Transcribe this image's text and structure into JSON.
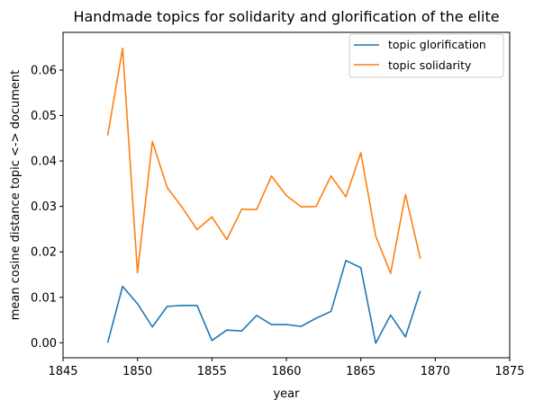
{
  "chart_data": {
    "type": "line",
    "title": "Handmade topics for solidarity and glorification of the elite",
    "xlabel": "year",
    "ylabel": "mean cosine distance topic <-> document",
    "xlim": [
      1845,
      1875
    ],
    "ylim": [
      -0.0033,
      0.0683
    ],
    "xticks": [
      1845,
      1850,
      1855,
      1860,
      1865,
      1870,
      1875
    ],
    "xtick_labels": [
      "1845",
      "1850",
      "1855",
      "1860",
      "1865",
      "1870",
      "1875"
    ],
    "yticks": [
      0.0,
      0.01,
      0.02,
      0.03,
      0.04,
      0.05,
      0.06
    ],
    "ytick_labels": [
      "0.00",
      "0.01",
      "0.02",
      "0.03",
      "0.04",
      "0.05",
      "0.06"
    ],
    "grid": false,
    "legend_position": "top-right",
    "x": [
      1848,
      1849,
      1850,
      1851,
      1852,
      1853,
      1854,
      1855,
      1856,
      1857,
      1858,
      1859,
      1860,
      1861,
      1862,
      1863,
      1864,
      1865,
      1866,
      1867,
      1868,
      1869
    ],
    "series": [
      {
        "name": "topic glorification",
        "color": "#1f77b4",
        "values": [
          0.0,
          0.0124,
          0.0086,
          0.0035,
          0.008,
          0.0082,
          0.0082,
          0.0005,
          0.0028,
          0.0026,
          0.006,
          0.004,
          0.004,
          0.0036,
          0.0054,
          0.0069,
          0.0181,
          0.0165,
          -0.0001,
          0.0061,
          0.0013,
          0.0114
        ]
      },
      {
        "name": "topic solidarity",
        "color": "#ff7f0e",
        "values": [
          0.0456,
          0.0648,
          0.0154,
          0.0443,
          0.0341,
          0.0298,
          0.0249,
          0.0277,
          0.0227,
          0.0294,
          0.0293,
          0.0367,
          0.0324,
          0.0299,
          0.03,
          0.0367,
          0.0321,
          0.0418,
          0.0235,
          0.0153,
          0.0326,
          0.0185
        ]
      }
    ]
  }
}
